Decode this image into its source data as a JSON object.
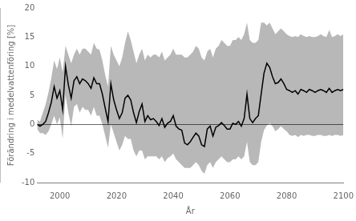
{
  "chart_data": {
    "type": "line",
    "xlabel": "År",
    "ylabel": "Förändring i medelvattenföring [%]",
    "xlim": [
      1992,
      2100
    ],
    "ylim": [
      -10,
      20
    ],
    "xticks": [
      2000,
      2020,
      2040,
      2060,
      2080,
      2100
    ],
    "yticks": [
      -10,
      -5,
      0,
      5,
      10,
      15,
      20
    ],
    "grid": false,
    "color": "#000000",
    "x": [
      1992,
      1993,
      1994,
      1995,
      1996,
      1997,
      1998,
      1999,
      2000,
      2001,
      2002,
      2003,
      2004,
      2005,
      2006,
      2007,
      2008,
      2009,
      2010,
      2011,
      2012,
      2013,
      2014,
      2015,
      2016,
      2017,
      2018,
      2019,
      2020,
      2021,
      2022,
      2023,
      2024,
      2025,
      2026,
      2027,
      2028,
      2029,
      2030,
      2031,
      2032,
      2033,
      2034,
      2035,
      2036,
      2037,
      2038,
      2039,
      2040,
      2041,
      2042,
      2043,
      2044,
      2045,
      2046,
      2047,
      2048,
      2049,
      2050,
      2051,
      2052,
      2053,
      2054,
      2055,
      2056,
      2057,
      2058,
      2059,
      2060,
      2061,
      2062,
      2063,
      2064,
      2065,
      2066,
      2067,
      2068,
      2069,
      2070,
      2071,
      2072,
      2073,
      2074,
      2075,
      2076,
      2077,
      2078,
      2079,
      2080,
      2081,
      2082,
      2083,
      2084,
      2085,
      2086,
      2087,
      2088,
      2089,
      2090,
      2091,
      2092,
      2093,
      2094,
      2095,
      2096,
      2097,
      2098,
      2099,
      2100
    ],
    "values": [
      0.0,
      -0.3,
      0.0,
      0.5,
      2.0,
      3.8,
      6.5,
      4.5,
      5.8,
      2.5,
      10.0,
      6.8,
      4.5,
      7.5,
      8.2,
      7.0,
      7.8,
      7.5,
      7.0,
      6.2,
      8.0,
      7.0,
      7.0,
      5.2,
      2.8,
      0.5,
      7.0,
      4.2,
      2.5,
      1.0,
      2.0,
      4.5,
      5.0,
      4.2,
      2.0,
      0.3,
      2.2,
      3.5,
      0.5,
      1.5,
      0.8,
      1.0,
      0.5,
      -0.2,
      1.0,
      -0.5,
      0.2,
      0.5,
      1.5,
      -0.3,
      -0.8,
      -1.0,
      -3.2,
      -3.5,
      -3.0,
      -2.2,
      -1.5,
      -2.0,
      -3.5,
      -3.8,
      -0.8,
      -0.3,
      -2.0,
      -0.5,
      -0.2,
      0.3,
      -0.2,
      -0.8,
      -0.8,
      0.2,
      0.0,
      0.5,
      -0.3,
      1.0,
      5.2,
      1.0,
      0.3,
      1.0,
      1.5,
      5.2,
      8.8,
      10.5,
      9.8,
      8.2,
      7.0,
      7.2,
      7.8,
      7.0,
      6.0,
      5.8,
      5.5,
      5.8,
      5.2,
      6.0,
      5.8,
      5.5,
      6.0,
      5.8,
      5.5,
      5.8,
      6.0,
      5.8,
      5.5,
      6.2,
      5.5,
      5.8,
      6.0,
      5.8,
      6.0
    ],
    "upper": [
      0.8,
      0.5,
      2.0,
      3.5,
      5.5,
      8.0,
      11.0,
      9.5,
      11.5,
      9.0,
      13.5,
      12.0,
      10.5,
      12.0,
      13.0,
      12.0,
      13.0,
      13.0,
      12.5,
      12.0,
      14.0,
      13.0,
      12.8,
      11.0,
      8.5,
      6.5,
      13.5,
      12.0,
      11.0,
      10.0,
      11.5,
      14.0,
      16.0,
      14.5,
      12.5,
      10.5,
      12.0,
      13.0,
      11.0,
      12.0,
      11.5,
      12.0,
      12.0,
      11.5,
      12.5,
      11.0,
      11.5,
      12.0,
      13.0,
      12.0,
      12.0,
      12.0,
      11.5,
      11.5,
      12.0,
      12.5,
      13.5,
      13.0,
      11.5,
      11.0,
      12.5,
      13.0,
      11.5,
      13.0,
      13.5,
      14.5,
      14.0,
      13.5,
      13.5,
      14.5,
      14.5,
      15.0,
      14.5,
      15.5,
      17.5,
      14.5,
      14.0,
      14.0,
      14.5,
      17.5,
      17.5,
      17.0,
      17.5,
      16.5,
      15.5,
      16.0,
      16.5,
      16.0,
      15.5,
      15.2,
      15.0,
      15.2,
      15.0,
      15.5,
      15.2,
      15.0,
      15.2,
      15.0,
      15.0,
      15.2,
      15.5,
      15.2,
      15.0,
      16.2,
      15.0,
      15.2,
      15.5,
      15.2,
      15.5
    ],
    "lower": [
      -0.8,
      -1.5,
      -1.5,
      -1.8,
      -1.2,
      0.0,
      1.5,
      0.0,
      1.2,
      -2.5,
      5.0,
      2.0,
      -0.3,
      3.0,
      3.5,
      2.0,
      3.0,
      2.5,
      2.5,
      1.5,
      3.0,
      1.5,
      1.5,
      0.0,
      -2.0,
      -4.0,
      0.0,
      -1.5,
      -3.0,
      -4.5,
      -3.5,
      -2.0,
      -2.5,
      -2.5,
      -4.5,
      -5.5,
      -4.5,
      -4.5,
      -6.0,
      -5.5,
      -5.5,
      -5.5,
      -5.5,
      -6.0,
      -5.5,
      -6.5,
      -5.8,
      -5.5,
      -5.0,
      -6.0,
      -6.5,
      -7.0,
      -7.5,
      -7.5,
      -7.5,
      -7.0,
      -6.5,
      -7.0,
      -8.0,
      -8.5,
      -7.0,
      -6.5,
      -7.5,
      -6.5,
      -6.0,
      -5.5,
      -6.0,
      -6.5,
      -6.5,
      -6.0,
      -6.0,
      -5.5,
      -6.0,
      -5.5,
      -3.0,
      -6.5,
      -7.0,
      -7.0,
      -6.5,
      -3.0,
      -1.0,
      -0.2,
      0.2,
      -0.3,
      -1.2,
      -0.8,
      -0.3,
      -0.8,
      -1.2,
      -1.8,
      -2.0,
      -1.8,
      -2.2,
      -1.8,
      -2.0,
      -1.8,
      -1.8,
      -2.0,
      -2.0,
      -1.8,
      -1.8,
      -2.0,
      -2.0,
      -1.8,
      -2.0,
      -1.8,
      -1.8,
      -2.0,
      -1.8
    ]
  }
}
